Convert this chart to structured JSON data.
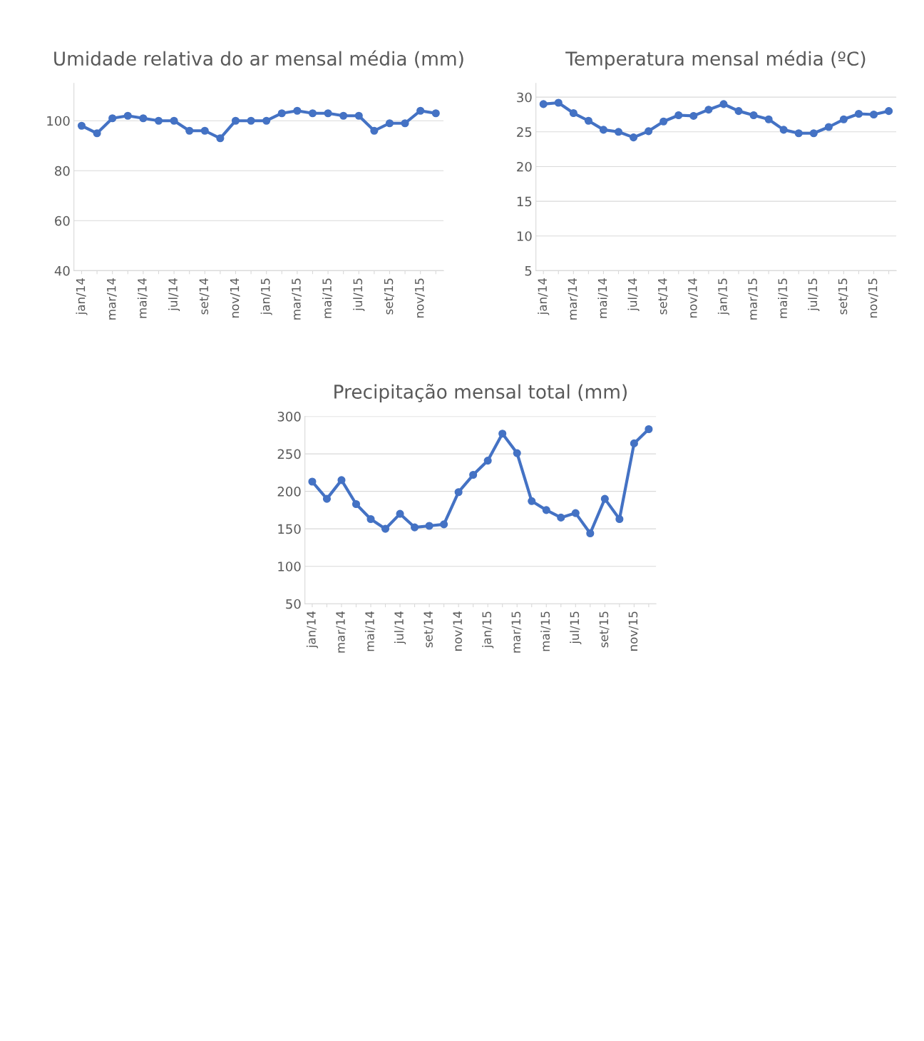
{
  "chart_data": [
    {
      "type": "line",
      "title": "Umidade relativa do ar mensal média (mm)",
      "categories": [
        "jan/14",
        null,
        "mar/14",
        null,
        "mai/14",
        null,
        "jul/14",
        null,
        "set/14",
        null,
        "nov/14",
        null,
        "jan/15",
        null,
        "mar/15",
        null,
        "mai/15",
        null,
        "jul/15",
        null,
        "set/15",
        null,
        "nov/15",
        null
      ],
      "series": [
        {
          "color": "#4472c4",
          "values": [
            98,
            95,
            101,
            102,
            101,
            100,
            100,
            96,
            96,
            93,
            100,
            100,
            100,
            103,
            104,
            103,
            103,
            102,
            102,
            96,
            99,
            99,
            104,
            103
          ]
        }
      ],
      "ylim": [
        40,
        115
      ],
      "yticks": [
        40,
        60,
        80,
        100
      ],
      "grid": "y",
      "marker": "circle",
      "line_style": "solid",
      "legend": false
    },
    {
      "type": "line",
      "title": "Temperatura mensal média (ºC)",
      "categories": [
        "jan/14",
        null,
        "mar/14",
        null,
        "mai/14",
        null,
        "jul/14",
        null,
        "set/14",
        null,
        "nov/14",
        null,
        "jan/15",
        null,
        "mar/15",
        null,
        "mai/15",
        null,
        "jul/15",
        null,
        "set/15",
        null,
        "nov/15",
        null
      ],
      "series": [
        {
          "color": "#4472c4",
          "values": [
            29.0,
            29.2,
            27.7,
            26.6,
            25.3,
            25.0,
            24.2,
            25.1,
            26.5,
            27.4,
            27.3,
            28.2,
            29.0,
            28.0,
            27.4,
            26.8,
            25.3,
            24.8,
            24.8,
            25.7,
            26.8,
            27.6,
            27.5,
            28.0
          ]
        }
      ],
      "ylim": [
        5,
        32
      ],
      "yticks": [
        5,
        10,
        15,
        20,
        25,
        30
      ],
      "grid": "y",
      "marker": "circle",
      "line_style": "solid",
      "legend": false
    },
    {
      "type": "line",
      "title": "Precipitação mensal total (mm)",
      "categories": [
        "jan/14",
        null,
        "mar/14",
        null,
        "mai/14",
        null,
        "jul/14",
        null,
        "set/14",
        null,
        "nov/14",
        null,
        "jan/15",
        null,
        "mar/15",
        null,
        "mai/15",
        null,
        "jul/15",
        null,
        "set/15",
        null,
        "nov/15",
        null
      ],
      "series": [
        {
          "color": "#4472c4",
          "values": [
            213,
            190,
            215,
            183,
            163,
            150,
            170,
            152,
            154,
            156,
            199,
            222,
            241,
            277,
            251,
            187,
            175,
            165,
            171,
            144,
            190,
            163,
            264,
            283
          ]
        }
      ],
      "ylim": [
        50,
        300
      ],
      "yticks": [
        50,
        100,
        150,
        200,
        250,
        300
      ],
      "grid": "y",
      "marker": "circle",
      "line_style": "solid",
      "legend": false
    }
  ]
}
